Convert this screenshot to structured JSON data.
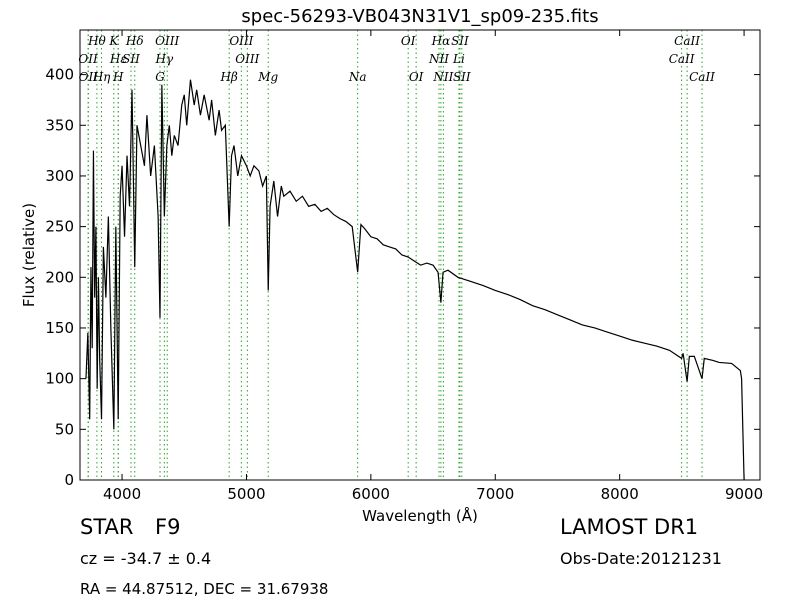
{
  "chart_data": {
    "type": "line",
    "title": "spec-56293-VB043N31V1_sp09-235.fits",
    "x_label": "Wavelength (Å)",
    "y_label": "Flux (relative)",
    "xlim": [
      3662,
      9128
    ],
    "ylim": [
      0,
      444
    ],
    "xticks": [
      4000,
      5000,
      6000,
      7000,
      8000,
      9000
    ],
    "yticks": [
      0,
      50,
      100,
      150,
      200,
      250,
      300,
      350,
      400
    ],
    "color": "#000000",
    "line_color": "#2ca02c",
    "x": [
      3710,
      3725,
      3740,
      3750,
      3760,
      3770,
      3780,
      3790,
      3800,
      3810,
      3820,
      3835,
      3850,
      3870,
      3890,
      3910,
      3934,
      3950,
      3969,
      3985,
      4000,
      4020,
      4040,
      4060,
      4080,
      4102,
      4120,
      4150,
      4180,
      4200,
      4230,
      4260,
      4290,
      4305,
      4320,
      4340,
      4360,
      4380,
      4400,
      4420,
      4450,
      4480,
      4500,
      4520,
      4550,
      4580,
      4600,
      4630,
      4660,
      4700,
      4720,
      4750,
      4780,
      4800,
      4830,
      4861,
      4880,
      4900,
      4930,
      4960,
      5000,
      5030,
      5060,
      5100,
      5130,
      5160,
      5175,
      5190,
      5220,
      5250,
      5280,
      5300,
      5350,
      5400,
      5450,
      5500,
      5550,
      5600,
      5650,
      5700,
      5750,
      5800,
      5850,
      5894,
      5920,
      5950,
      6000,
      6050,
      6100,
      6150,
      6200,
      6250,
      6300,
      6350,
      6400,
      6450,
      6500,
      6540,
      6563,
      6580,
      6620,
      6700,
      6800,
      6900,
      7000,
      7100,
      7200,
      7300,
      7400,
      7500,
      7600,
      7700,
      7800,
      7900,
      8000,
      8100,
      8200,
      8300,
      8400,
      8498,
      8510,
      8542,
      8560,
      8600,
      8662,
      8680,
      8750,
      8800,
      8900,
      8970,
      8980,
      9000
    ],
    "values": [
      100,
      145,
      60,
      210,
      130,
      325,
      180,
      250,
      90,
      200,
      120,
      60,
      230,
      180,
      260,
      150,
      50,
      250,
      60,
      280,
      310,
      240,
      320,
      270,
      385,
      210,
      350,
      330,
      310,
      360,
      300,
      330,
      260,
      160,
      390,
      260,
      330,
      350,
      320,
      340,
      330,
      370,
      380,
      350,
      395,
      370,
      385,
      360,
      380,
      355,
      375,
      340,
      365,
      345,
      350,
      250,
      320,
      330,
      300,
      320,
      310,
      300,
      310,
      305,
      290,
      300,
      187,
      270,
      295,
      260,
      290,
      280,
      285,
      275,
      280,
      270,
      272,
      265,
      268,
      262,
      258,
      255,
      250,
      205,
      252,
      248,
      240,
      238,
      232,
      230,
      228,
      222,
      220,
      216,
      212,
      214,
      212,
      205,
      175,
      205,
      207,
      200,
      196,
      192,
      187,
      183,
      178,
      172,
      168,
      163,
      158,
      153,
      150,
      146,
      142,
      138,
      135,
      132,
      128,
      120,
      125,
      97,
      122,
      122,
      100,
      120,
      118,
      116,
      115,
      108,
      100,
      0
    ],
    "lines": [
      {
        "label": "Hθ",
        "wavelength": 3798
      },
      {
        "label": "K",
        "wavelength": 3934
      },
      {
        "label": "Hδ",
        "wavelength": 4102
      },
      {
        "label": "OIII",
        "wavelength": 4363
      },
      {
        "label": "OIII",
        "wavelength": 4959
      },
      {
        "label": "OI",
        "wavelength": 6300
      },
      {
        "label": "Hα",
        "wavelength": 6563
      },
      {
        "label": "SII",
        "wavelength": 6716
      },
      {
        "label": "CaII",
        "wavelength": 8542
      },
      {
        "label": "OII",
        "wavelength": 3727
      },
      {
        "label": "Hε",
        "wavelength": 3970
      },
      {
        "label": "SII",
        "wavelength": 4072
      },
      {
        "label": "Hγ",
        "wavelength": 4340
      },
      {
        "label": "OIII",
        "wavelength": 5007
      },
      {
        "label": "NII",
        "wavelength": 6548
      },
      {
        "label": "Li",
        "wavelength": 6708
      },
      {
        "label": "CaII",
        "wavelength": 8498
      },
      {
        "label": "OII",
        "wavelength": 3729
      },
      {
        "label": "Hη",
        "wavelength": 3835
      },
      {
        "label": "H",
        "wavelength": 3969
      },
      {
        "label": "G",
        "wavelength": 4305
      },
      {
        "label": "Hβ",
        "wavelength": 4861
      },
      {
        "label": "Mg",
        "wavelength": 5175
      },
      {
        "label": "Na",
        "wavelength": 5894
      },
      {
        "label": "OI",
        "wavelength": 6364
      },
      {
        "label": "NII",
        "wavelength": 6583
      },
      {
        "label": "SII",
        "wavelength": 6731
      },
      {
        "label": "CaII",
        "wavelength": 8662
      }
    ]
  },
  "info": {
    "class": "STAR",
    "subclass": "F9",
    "survey": "LAMOST DR1",
    "redshift": "cz = -34.7 ± 0.4",
    "obs_date": "Obs-Date:20121231",
    "coords": "RA = 44.87512, DEC = 31.67938"
  }
}
